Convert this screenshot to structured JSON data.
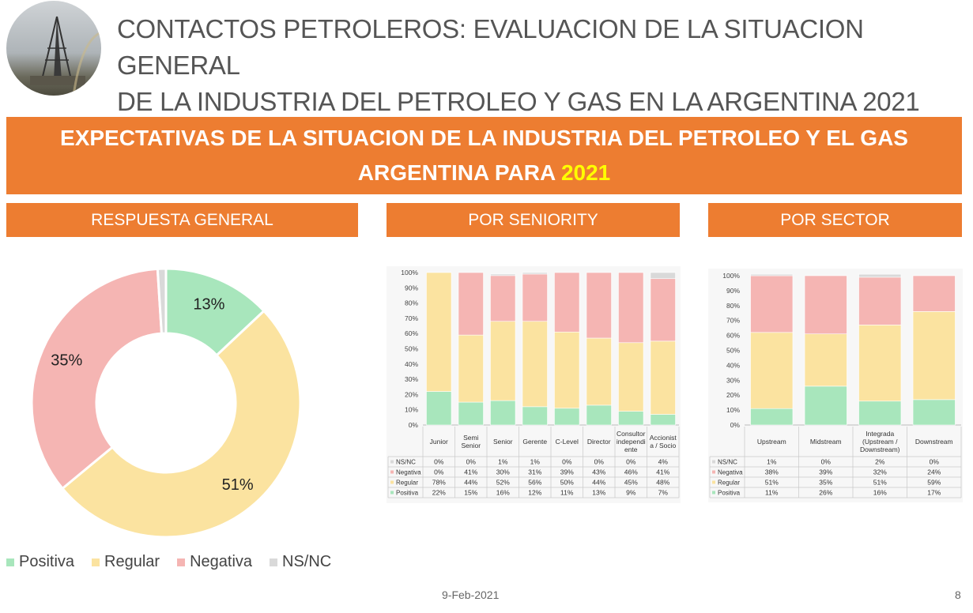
{
  "header": {
    "title_line1": "CONTACTOS PETROLEROS: EVALUACION DE LA SITUACION GENERAL",
    "title_line2": "DE LA INDUSTRIA DEL PETROLEO Y GAS EN LA ARGENTINA 2021"
  },
  "banner": {
    "line1": "EXPECTATIVAS DE LA SITUACION DE LA INDUSTRIA DEL PETROLEO Y EL GAS",
    "line2_prefix": "ARGENTINA PARA ",
    "line2_year": "2021"
  },
  "sections": {
    "general": "RESPUESTA GENERAL",
    "seniority": "POR SENIORITY",
    "sector": "POR SECTOR"
  },
  "colors": {
    "orange": "#ED7D31",
    "year": "#FFFF00",
    "positiva": "#A8E6BC",
    "regular": "#FBE3A0",
    "negativa": "#F5B5B3",
    "nsnc": "#D9D9D9"
  },
  "legend": [
    "Positiva",
    "Regular",
    "Negativa",
    "NS/NC"
  ],
  "chart_data": [
    {
      "type": "pie",
      "title": "",
      "categories": [
        "Positiva",
        "Regular",
        "Negativa",
        "NS/NC"
      ],
      "values": [
        13,
        51,
        35,
        1
      ],
      "labels": [
        "13%",
        "51%",
        "35%"
      ],
      "legend_position": "bottom"
    },
    {
      "type": "bar",
      "stacked": true,
      "title": "",
      "categories": [
        "Junior",
        "Semi Senior",
        "Senior",
        "Gerente",
        "C-Level",
        "Director",
        "Consultor independiente",
        "Accionista / Socio"
      ],
      "category_labels": [
        [
          "Junior"
        ],
        [
          "Semi",
          "Senior"
        ],
        [
          "Senior"
        ],
        [
          "Gerente"
        ],
        [
          "C-Level"
        ],
        [
          "Director"
        ],
        [
          "Consultor",
          "independi",
          "ente"
        ],
        [
          "Accionist",
          "a / Socio"
        ]
      ],
      "ylim": [
        0,
        100
      ],
      "yticks": [
        "0%",
        "10%",
        "20%",
        "30%",
        "40%",
        "50%",
        "60%",
        "70%",
        "80%",
        "90%",
        "100%"
      ],
      "series": [
        {
          "name": "Positiva",
          "values": [
            22,
            15,
            16,
            12,
            11,
            13,
            9,
            7
          ]
        },
        {
          "name": "Regular",
          "values": [
            78,
            44,
            52,
            56,
            50,
            44,
            45,
            48
          ]
        },
        {
          "name": "Negativa",
          "values": [
            0,
            41,
            30,
            31,
            39,
            43,
            46,
            41
          ]
        },
        {
          "name": "NS/NC",
          "values": [
            0,
            0,
            1,
            1,
            0,
            0,
            0,
            4
          ]
        }
      ]
    },
    {
      "type": "bar",
      "stacked": true,
      "title": "",
      "categories": [
        "Upstream",
        "Midstream",
        "Integrada (Upstream / Downstream)",
        "Downstream"
      ],
      "category_labels": [
        [
          "Upstream"
        ],
        [
          "Midstream"
        ],
        [
          "Integrada",
          "(Upstream /",
          "Downstream)"
        ],
        [
          "Downstream"
        ]
      ],
      "ylim": [
        0,
        100
      ],
      "yticks": [
        "0%",
        "10%",
        "20%",
        "30%",
        "40%",
        "50%",
        "60%",
        "70%",
        "80%",
        "90%",
        "100%"
      ],
      "series": [
        {
          "name": "Positiva",
          "values": [
            11,
            26,
            16,
            17
          ]
        },
        {
          "name": "Regular",
          "values": [
            51,
            35,
            51,
            59
          ]
        },
        {
          "name": "Negativa",
          "values": [
            38,
            39,
            32,
            24
          ]
        },
        {
          "name": "NS/NC",
          "values": [
            1,
            0,
            2,
            0
          ]
        }
      ]
    }
  ],
  "footer": {
    "date": "9-Feb-2021",
    "page": "8"
  }
}
